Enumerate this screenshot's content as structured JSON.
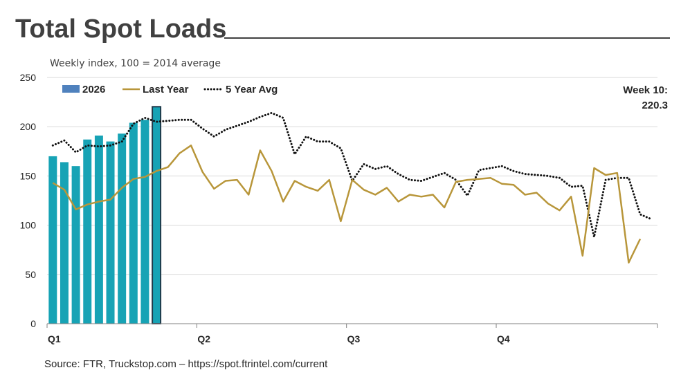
{
  "page": {
    "title": "Total Spot Loads",
    "subtitle": "Weekly index, 100 = 2014 average",
    "source": "Source: FTR, Truckstop.com – https://spot.ftrintel.com/current",
    "week_note_line1": "Week 10:",
    "week_note_line2": "220.3"
  },
  "chart_data": {
    "type": "bar",
    "title": "Total Spot Loads",
    "subtitle": "Weekly index, 100 = 2014 average",
    "xlabel": "",
    "ylabel": "",
    "ylim": [
      0,
      250
    ],
    "yticks": [
      0,
      50,
      100,
      150,
      200,
      250
    ],
    "weeks": 53,
    "quarter_labels": [
      "Q1",
      "Q2",
      "Q3",
      "Q4"
    ],
    "quarter_start_weeks": [
      1,
      14,
      27,
      40
    ],
    "legend": [
      "2026",
      "Last Year",
      "5 Year Avg"
    ],
    "grid": true,
    "colors": {
      "bar": "#17a3b5",
      "bar_border": "#1f3a4a",
      "legend_bar": "#4f81bd",
      "last_year": "#b8963a",
      "five_year": "#111111",
      "grid": "#d9d9d9"
    },
    "series": [
      {
        "name": "2026",
        "type": "bar",
        "values": [
          170,
          164,
          160,
          187,
          191,
          185,
          193,
          204,
          207,
          220.3
        ]
      },
      {
        "name": "Last Year",
        "type": "line",
        "values": [
          143,
          136,
          116,
          121,
          124,
          126,
          138,
          147,
          149,
          155,
          159,
          173,
          181,
          154,
          137,
          145,
          146,
          131,
          176,
          155,
          124,
          145,
          139,
          135,
          146,
          104,
          146,
          136,
          131,
          138,
          124,
          131,
          129,
          131,
          118,
          144,
          146,
          147,
          148,
          142,
          141,
          131,
          133,
          122,
          115,
          129,
          69,
          158,
          151,
          153,
          62,
          86
        ]
      },
      {
        "name": "5 Year Avg",
        "type": "line",
        "values": [
          181,
          186,
          174,
          181,
          180,
          181,
          185,
          203,
          209,
          205,
          206,
          207,
          207,
          198,
          190,
          197,
          201,
          205,
          210,
          214,
          209,
          172,
          190,
          185,
          185,
          178,
          145,
          162,
          157,
          160,
          152,
          146,
          145,
          149,
          153,
          146,
          130,
          156,
          158,
          160,
          155,
          152,
          151,
          150,
          148,
          139,
          140,
          88,
          146,
          148,
          148,
          111,
          106
        ]
      }
    ]
  }
}
